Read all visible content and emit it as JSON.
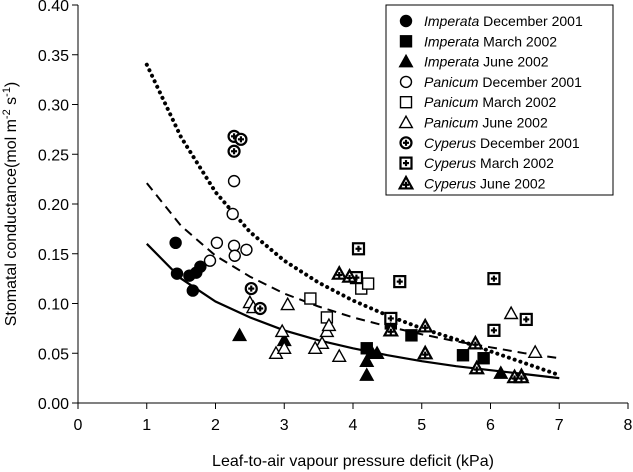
{
  "chart_data": {
    "type": "scatter",
    "xlabel": "Leaf-to-air vapour pressure deficit (kPa)",
    "ylabel_parts": [
      "Stomatal conductance(mol m",
      "-2",
      " s",
      "-1",
      ")"
    ],
    "xlim": [
      0,
      8
    ],
    "ylim": [
      0,
      0.4
    ],
    "xticks": [
      "0",
      "1",
      "2",
      "3",
      "4",
      "5",
      "6",
      "7",
      "8"
    ],
    "yticks": [
      "0.00",
      "0.05",
      "0.10",
      "0.15",
      "0.20",
      "0.25",
      "0.30",
      "0.35",
      "0.40"
    ],
    "legend_position": "top-right",
    "series": [
      {
        "genus": "Imperata",
        "period": "December 2001",
        "marker": "circle-filled",
        "points": [
          [
            1.42,
            0.161
          ],
          [
            1.44,
            0.13
          ],
          [
            1.62,
            0.128
          ],
          [
            1.67,
            0.113
          ],
          [
            1.72,
            0.131
          ],
          [
            1.78,
            0.137
          ]
        ]
      },
      {
        "genus": "Imperata",
        "period": "March 2002",
        "marker": "square-filled",
        "points": [
          [
            4.2,
            0.055
          ],
          [
            4.55,
            0.08
          ],
          [
            4.85,
            0.068
          ],
          [
            5.6,
            0.048
          ],
          [
            5.9,
            0.045
          ]
        ]
      },
      {
        "genus": "Imperata",
        "period": "June 2002",
        "marker": "triangle-filled",
        "points": [
          [
            2.35,
            0.068
          ],
          [
            3.0,
            0.063
          ],
          [
            4.2,
            0.028
          ],
          [
            4.2,
            0.042
          ],
          [
            4.28,
            0.05
          ],
          [
            4.35,
            0.05
          ],
          [
            6.15,
            0.03
          ],
          [
            6.45,
            0.028
          ]
        ]
      },
      {
        "genus": "Panicum",
        "period": "December 2001",
        "marker": "circle-open",
        "points": [
          [
            1.92,
            0.143
          ],
          [
            2.02,
            0.161
          ],
          [
            2.25,
            0.19
          ],
          [
            2.27,
            0.223
          ],
          [
            2.27,
            0.158
          ],
          [
            2.28,
            0.148
          ],
          [
            2.45,
            0.154
          ]
        ]
      },
      {
        "genus": "Panicum",
        "period": "March 2002",
        "marker": "square-open",
        "points": [
          [
            3.38,
            0.105
          ],
          [
            3.62,
            0.086
          ],
          [
            4.12,
            0.115
          ],
          [
            4.22,
            0.12
          ]
        ]
      },
      {
        "genus": "Panicum",
        "period": "June 2002",
        "marker": "triangle-open",
        "points": [
          [
            2.5,
            0.101
          ],
          [
            2.55,
            0.096
          ],
          [
            2.88,
            0.05
          ],
          [
            2.97,
            0.072
          ],
          [
            3.05,
            0.099
          ],
          [
            3.55,
            0.06
          ],
          [
            3.62,
            0.072
          ],
          [
            3.65,
            0.078
          ],
          [
            3.8,
            0.047
          ],
          [
            6.3,
            0.09
          ],
          [
            6.65,
            0.051
          ],
          [
            3.0,
            0.055
          ],
          [
            3.45,
            0.055
          ]
        ]
      },
      {
        "genus": "Cyperus",
        "period": "December 2001",
        "marker": "circle-cross",
        "points": [
          [
            2.27,
            0.268
          ],
          [
            2.27,
            0.253
          ],
          [
            2.37,
            0.265
          ],
          [
            2.52,
            0.115
          ],
          [
            2.65,
            0.095
          ]
        ]
      },
      {
        "genus": "Cyperus",
        "period": "March 2002",
        "marker": "square-cross",
        "points": [
          [
            4.05,
            0.126
          ],
          [
            4.08,
            0.155
          ],
          [
            4.55,
            0.085
          ],
          [
            4.68,
            0.122
          ],
          [
            6.05,
            0.125
          ],
          [
            6.05,
            0.073
          ],
          [
            6.52,
            0.084
          ]
        ]
      },
      {
        "genus": "Cyperus",
        "period": "June 2002",
        "marker": "triangle-cross",
        "points": [
          [
            3.8,
            0.13
          ],
          [
            3.95,
            0.127
          ],
          [
            4.55,
            0.073
          ],
          [
            5.05,
            0.077
          ],
          [
            5.05,
            0.05
          ],
          [
            5.8,
            0.035
          ],
          [
            6.35,
            0.026
          ],
          [
            6.45,
            0.026
          ],
          [
            5.78,
            0.06
          ]
        ]
      }
    ],
    "fits": [
      {
        "style": "solid",
        "points": [
          [
            1.0,
            0.16
          ],
          [
            1.5,
            0.125
          ],
          [
            2.0,
            0.102
          ],
          [
            2.5,
            0.086
          ],
          [
            3.0,
            0.073
          ],
          [
            3.5,
            0.063
          ],
          [
            4.0,
            0.055
          ],
          [
            4.5,
            0.048
          ],
          [
            5.0,
            0.042
          ],
          [
            5.5,
            0.037
          ],
          [
            6.0,
            0.033
          ],
          [
            6.5,
            0.029
          ],
          [
            7.0,
            0.025
          ]
        ]
      },
      {
        "style": "dashed",
        "points": [
          [
            1.0,
            0.221
          ],
          [
            1.5,
            0.178
          ],
          [
            2.0,
            0.148
          ],
          [
            2.5,
            0.127
          ],
          [
            3.0,
            0.11
          ],
          [
            3.5,
            0.097
          ],
          [
            4.0,
            0.086
          ],
          [
            4.5,
            0.077
          ],
          [
            5.0,
            0.069
          ],
          [
            5.5,
            0.062
          ],
          [
            6.0,
            0.056
          ],
          [
            6.5,
            0.05
          ],
          [
            7.0,
            0.045
          ]
        ]
      },
      {
        "style": "dotted",
        "points": [
          [
            1.0,
            0.34
          ],
          [
            1.5,
            0.267
          ],
          [
            2.0,
            0.212
          ],
          [
            2.5,
            0.172
          ],
          [
            3.0,
            0.143
          ],
          [
            3.5,
            0.121
          ],
          [
            4.0,
            0.103
          ],
          [
            4.5,
            0.088
          ],
          [
            5.0,
            0.075
          ],
          [
            5.5,
            0.064
          ],
          [
            6.0,
            0.052
          ],
          [
            6.5,
            0.04
          ],
          [
            7.0,
            0.028
          ]
        ]
      }
    ]
  }
}
